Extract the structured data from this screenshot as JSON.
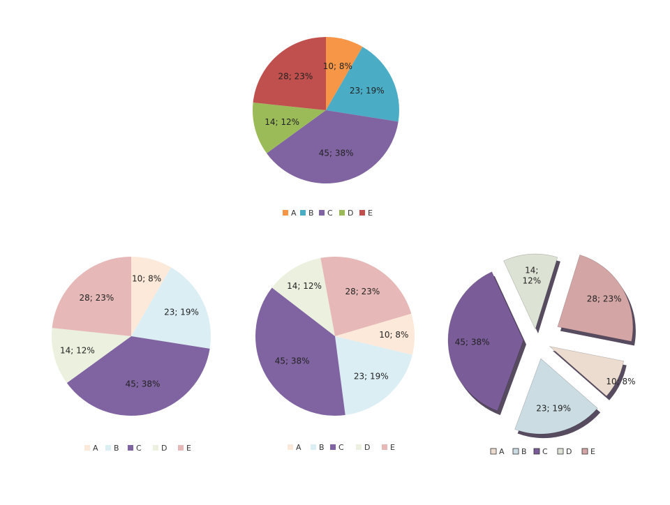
{
  "chart_data": [
    {
      "type": "pie",
      "categories": [
        "A",
        "B",
        "C",
        "D",
        "E"
      ],
      "values": [
        10,
        23,
        45,
        14,
        28
      ],
      "data_labels": [
        "10; 8%",
        "23; 19%",
        "45; 38%",
        "14; 12%",
        "28; 23%"
      ],
      "colors": [
        "#f79646",
        "#4bacc6",
        "#8064a2",
        "#9bbb59",
        "#c0504d"
      ],
      "legend": "bottom"
    },
    {
      "type": "pie",
      "categories": [
        "A",
        "B",
        "C",
        "D",
        "E"
      ],
      "values": [
        10,
        23,
        45,
        14,
        28
      ],
      "data_labels": [
        "10; 8%",
        "23; 19%",
        "45; 38%",
        "14; 12%",
        "28; 23%"
      ],
      "colors": [
        "#fde9d9",
        "#dbeef4",
        "#8064a2",
        "#ebf1de",
        "#e6b9b8"
      ],
      "legend": "bottom"
    },
    {
      "type": "pie",
      "categories": [
        "A",
        "B",
        "C",
        "D",
        "E"
      ],
      "values": [
        10,
        23,
        45,
        14,
        28
      ],
      "data_labels": [
        "10; 8%",
        "23; 19%",
        "45; 38%",
        "14; 12%",
        "28; 23%"
      ],
      "colors": [
        "#fde9d9",
        "#dbeef4",
        "#8064a2",
        "#ebf1de",
        "#e6b9b8"
      ],
      "legend": "bottom"
    },
    {
      "type": "pie",
      "style": "exploded-3d",
      "categories": [
        "A",
        "B",
        "C",
        "D",
        "E"
      ],
      "values": [
        10,
        23,
        45,
        14,
        28
      ],
      "data_labels": [
        "10; 8%",
        "23; 19%",
        "45; 38%",
        "14; 12%",
        "28; 23%"
      ],
      "colors": [
        "#ecdccf",
        "#cbdde3",
        "#7a5c98",
        "#dde3d4",
        "#d4a5a5"
      ],
      "legend": "bottom"
    }
  ]
}
